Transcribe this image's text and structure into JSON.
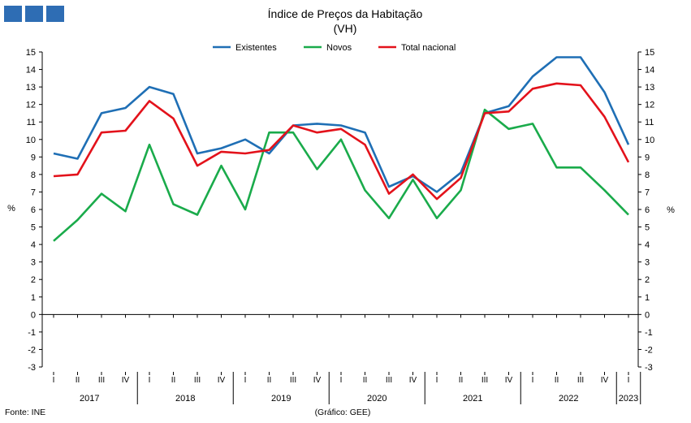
{
  "logo": {
    "color": "#2e6db4"
  },
  "chart_data": {
    "type": "line",
    "title": "Índice de Preços da Habitação",
    "subtitle": "(VH)",
    "ylabel_left": "%",
    "ylabel_right": "%",
    "ylim": [
      -3,
      15
    ],
    "yticks": [
      -3,
      -2,
      -1,
      0,
      1,
      2,
      3,
      4,
      5,
      6,
      7,
      8,
      9,
      10,
      11,
      12,
      13,
      14,
      15
    ],
    "legend_position": "top-center",
    "grid": false,
    "quarter_labels": [
      "I",
      "II",
      "III",
      "IV",
      "I",
      "II",
      "III",
      "IV",
      "I",
      "II",
      "III",
      "IV",
      "I",
      "II",
      "III",
      "IV",
      "I",
      "II",
      "III",
      "IV",
      "I",
      "II",
      "III",
      "IV",
      "I"
    ],
    "years": [
      {
        "label": "2017",
        "quarters": 4
      },
      {
        "label": "2018",
        "quarters": 4
      },
      {
        "label": "2019",
        "quarters": 4
      },
      {
        "label": "2020",
        "quarters": 4
      },
      {
        "label": "2021",
        "quarters": 4
      },
      {
        "label": "2022",
        "quarters": 4
      },
      {
        "label": "2023",
        "quarters": 1
      }
    ],
    "series": [
      {
        "name": "Existentes",
        "color": "#1f6fb5",
        "values": [
          9.2,
          8.9,
          11.5,
          11.8,
          13.0,
          12.6,
          9.2,
          9.5,
          10.0,
          9.2,
          10.8,
          10.9,
          10.8,
          10.4,
          7.3,
          7.9,
          7.0,
          8.1,
          11.5,
          11.9,
          13.6,
          14.7,
          14.7,
          12.7,
          9.7
        ]
      },
      {
        "name": "Novos",
        "color": "#1aab4b",
        "values": [
          4.2,
          5.4,
          6.9,
          5.9,
          9.7,
          6.3,
          5.7,
          8.5,
          6.0,
          10.4,
          10.4,
          8.3,
          10.0,
          7.1,
          5.5,
          7.7,
          5.5,
          7.1,
          11.7,
          10.6,
          10.9,
          8.4,
          8.4,
          7.1,
          5.7
        ]
      },
      {
        "name": "Total nacional",
        "color": "#e3121b",
        "values": [
          7.9,
          8.0,
          10.4,
          10.5,
          12.2,
          11.2,
          8.5,
          9.3,
          9.2,
          9.4,
          10.8,
          10.4,
          10.6,
          9.7,
          6.9,
          8.0,
          6.6,
          7.8,
          11.5,
          11.6,
          12.9,
          13.2,
          13.1,
          11.3,
          8.7
        ]
      }
    ]
  },
  "footer": {
    "source": "Fonte: INE",
    "credit": "(Gráfico: GEE)"
  }
}
